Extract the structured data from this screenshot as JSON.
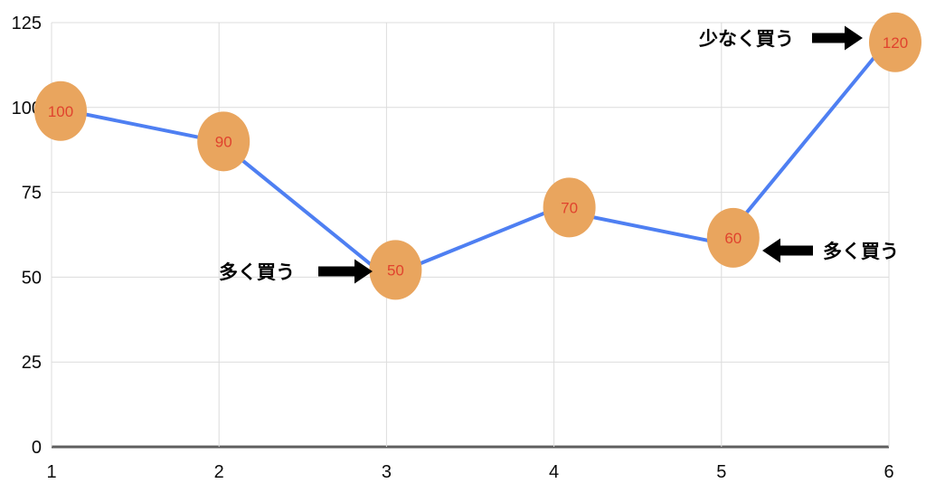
{
  "chart_data": {
    "type": "line",
    "title": "",
    "xlabel": "",
    "ylabel": "",
    "x": [
      "1",
      "2",
      "3",
      "4",
      "5",
      "6"
    ],
    "values": [
      100,
      90,
      50,
      70,
      60,
      120
    ],
    "point_labels": [
      "100",
      "90",
      "50",
      "70",
      "60",
      "120"
    ],
    "y_ticks": [
      0,
      25,
      50,
      75,
      100,
      125
    ],
    "ylim": [
      0,
      125
    ],
    "grid": true,
    "legend": "none",
    "colors": {
      "line": "#4e7ff2",
      "marker_fill": "#e9a55e",
      "value_label": "#e0432e",
      "grid": "#dcdcdc",
      "baseline": "#5f5f5f",
      "tick_text": "#0a0a0a",
      "annotation": "#000000"
    },
    "annotations": [
      {
        "text": "少なく買う",
        "arrow": "right",
        "target_point_index": 5
      },
      {
        "text": "多く買う",
        "arrow": "right",
        "target_point_index": 2
      },
      {
        "text": "多く買う",
        "arrow": "left",
        "target_point_index": 4
      }
    ]
  }
}
